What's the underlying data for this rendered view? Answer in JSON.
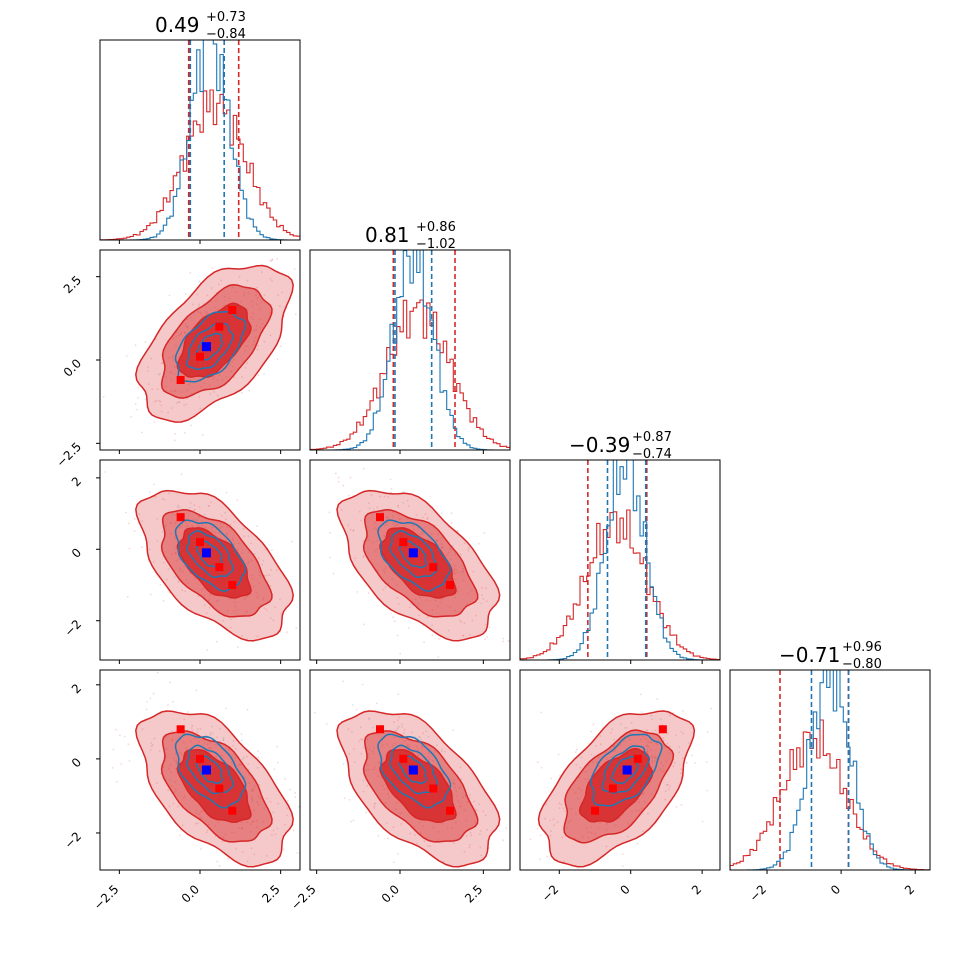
{
  "chart_data": {
    "type": "corner",
    "parameters": [
      {
        "title": {
          "main": "0.49",
          "plus": "+0.73",
          "minus": "−0.84"
        }
      },
      {
        "title": {
          "main": "0.81",
          "plus": "+0.86",
          "minus": "−1.02"
        }
      },
      {
        "title": {
          "main": "−0.39",
          "plus": "+0.87",
          "minus": "−0.74"
        }
      },
      {
        "title": {
          "main": "−0.71",
          "plus": "+0.96",
          "minus": "−0.80"
        }
      }
    ],
    "axis_ranges": [
      [
        -3.1,
        3.1
      ],
      [
        -2.7,
        3.3
      ],
      [
        -3.1,
        2.5
      ],
      [
        -3.0,
        2.4
      ]
    ],
    "x_ticks": [
      {
        "values": [
          -2.5,
          0.0,
          2.5
        ],
        "labels": [
          "−2.5",
          "0.0",
          "2.5"
        ]
      },
      {
        "values": [
          -2.5,
          0.0,
          2.5
        ],
        "labels": [
          "−2.5",
          "0.0",
          "2.5"
        ]
      },
      {
        "values": [
          -2,
          0,
          2
        ],
        "labels": [
          "−2",
          "0",
          "2"
        ]
      },
      {
        "values": [
          -2,
          0,
          2
        ],
        "labels": [
          "−2",
          "0",
          "2"
        ]
      }
    ],
    "y_ticks": [
      null,
      {
        "values": [
          -2.5,
          0.0,
          2.5
        ],
        "labels": [
          "−2.5",
          "0.0",
          "2.5"
        ]
      },
      {
        "values": [
          -2,
          0,
          2
        ],
        "labels": [
          "−2",
          "0",
          "2"
        ]
      },
      {
        "values": [
          -2,
          0,
          2
        ],
        "labels": [
          "−2",
          "0",
          "2"
        ]
      }
    ],
    "series": [
      {
        "color": "#d62728",
        "means": [
          0.45,
          0.55,
          -0.4,
          -0.75
        ],
        "sigmas": [
          0.95,
          0.95,
          0.85,
          0.85
        ],
        "quantiles": [
          [
            -0.35,
            1.2
          ],
          [
            -0.2,
            1.65
          ],
          [
            -1.2,
            0.45
          ],
          [
            -1.65,
            0.2
          ]
        ],
        "correlations": {
          "1,0": 0.55,
          "2,0": -0.55,
          "2,1": -0.55,
          "3,0": -0.55,
          "3,1": -0.55,
          "3,2": 0.55
        }
      },
      {
        "color": "#1f77b4",
        "means": [
          0.3,
          0.4,
          -0.15,
          -0.3
        ],
        "sigmas": [
          0.6,
          0.6,
          0.55,
          0.55
        ],
        "quantiles": [
          [
            -0.3,
            0.75
          ],
          [
            -0.15,
            0.95
          ],
          [
            -0.65,
            0.42
          ],
          [
            -0.8,
            0.2
          ]
        ],
        "correlations": {
          "1,0": 0.5,
          "2,0": -0.5,
          "2,1": -0.5,
          "3,0": -0.5,
          "3,1": -0.5,
          "3,2": 0.5
        }
      }
    ],
    "blue_marker": [
      0.2,
      0.4,
      -0.1,
      -0.3
    ],
    "red_markers": [
      [
        -0.6,
        -0.6,
        0.9,
        0.8
      ],
      [
        1.0,
        1.5,
        -1.0,
        -1.4
      ],
      [
        0.6,
        1.0,
        -0.5,
        -0.8
      ],
      [
        0.0,
        0.1,
        0.2,
        0.0
      ]
    ],
    "legend": "none",
    "grid": false
  }
}
